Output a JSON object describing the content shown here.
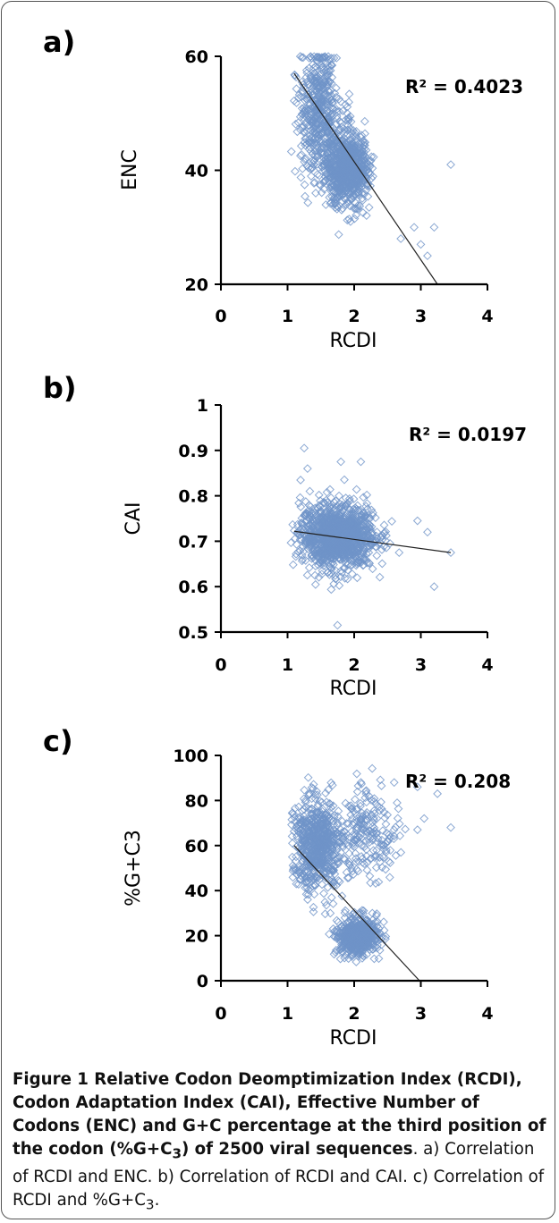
{
  "colors": {
    "marker": "#6f93c8",
    "trendline": "#222222",
    "axis": "#000000",
    "border": "#555555"
  },
  "chart_data": [
    {
      "type": "scatter",
      "panel_label": "a)",
      "xlabel": "RCDI",
      "ylabel": "ENC",
      "xlim": [
        0,
        4
      ],
      "ylim": [
        20,
        60
      ],
      "x_ticks": [
        "0",
        "1",
        "2",
        "3",
        "4"
      ],
      "y_ticks": [
        "20",
        "40",
        "60"
      ],
      "annotation": "R² = 0.4023",
      "marker": "diamond-open",
      "legend": "none",
      "grid": false,
      "clusters": [
        {
          "center": [
            1.45,
            51
          ],
          "spread": [
            0.14,
            5
          ],
          "approx_points": 380
        },
        {
          "center": [
            1.9,
            40
          ],
          "spread": [
            0.16,
            3
          ],
          "approx_points": 700
        },
        {
          "center": [
            1.7,
            44
          ],
          "spread": [
            0.2,
            4
          ],
          "approx_points": 200
        }
      ],
      "outliers": [
        [
          3.45,
          41
        ],
        [
          3.2,
          30
        ],
        [
          2.9,
          30
        ],
        [
          3.1,
          25
        ],
        [
          3.0,
          27
        ],
        [
          2.7,
          28
        ]
      ],
      "trendline": {
        "x": [
          1.1,
          3.25
        ],
        "y": [
          57,
          20
        ]
      }
    },
    {
      "type": "scatter",
      "panel_label": "b)",
      "xlabel": "RCDI",
      "ylabel": "CAI",
      "xlim": [
        0,
        4
      ],
      "ylim": [
        0.5,
        1
      ],
      "x_ticks": [
        "0",
        "1",
        "2",
        "3",
        "4"
      ],
      "y_ticks": [
        "0.5",
        "0.6",
        "0.7",
        "0.8",
        "0.9",
        "1"
      ],
      "annotation": "R² = 0.0197",
      "marker": "diamond-open",
      "legend": "none",
      "grid": false,
      "clusters": [
        {
          "center": [
            1.75,
            0.71
          ],
          "spread": [
            0.28,
            0.035
          ],
          "approx_points": 1200
        }
      ],
      "outliers": [
        [
          1.25,
          0.905
        ],
        [
          1.3,
          0.86
        ],
        [
          2.1,
          0.875
        ],
        [
          1.8,
          0.875
        ],
        [
          1.75,
          0.515
        ],
        [
          3.45,
          0.675
        ],
        [
          3.2,
          0.6
        ],
        [
          2.95,
          0.745
        ],
        [
          3.1,
          0.72
        ]
      ],
      "trendline": {
        "x": [
          1.1,
          3.45
        ],
        "y": [
          0.722,
          0.675
        ]
      }
    },
    {
      "type": "scatter",
      "panel_label": "c)",
      "xlabel": "RCDI",
      "ylabel": "%G+C3",
      "xlim": [
        0,
        4
      ],
      "ylim": [
        0,
        100
      ],
      "x_ticks": [
        "0",
        "1",
        "2",
        "3",
        "4"
      ],
      "y_ticks": [
        "0",
        "20",
        "40",
        "60",
        "80",
        "100"
      ],
      "annotation": "R² = 0.208",
      "marker": "diamond-open",
      "legend": "none",
      "grid": false,
      "clusters": [
        {
          "center": [
            1.45,
            60
          ],
          "spread": [
            0.18,
            10
          ],
          "approx_points": 650
        },
        {
          "center": [
            2.05,
            20
          ],
          "spread": [
            0.15,
            4
          ],
          "approx_points": 550
        },
        {
          "center": [
            2.2,
            65
          ],
          "spread": [
            0.25,
            10
          ],
          "approx_points": 200
        }
      ],
      "outliers": [
        [
          2.95,
          86
        ],
        [
          3.25,
          83
        ],
        [
          3.45,
          68
        ],
        [
          3.05,
          72
        ],
        [
          2.6,
          88
        ],
        [
          2.95,
          67
        ]
      ],
      "trendline": {
        "x": [
          1.1,
          2.98
        ],
        "y": [
          60,
          0
        ]
      }
    }
  ],
  "caption": {
    "bold_part": "Figure 1 Relative Codon Deomptimization Index (RCDI), Codon Adaptation Index (CAI), Effective Number of Codons (ENC) and G+C percentage at the third position of the codon (%G+C",
    "bold_sub": "3",
    "bold_tail": ") of 2500 viral sequences",
    "rest_1": ". a) Correlation of RCDI and ENC. b) Correlation of RCDI and CAI. c) Correlation of RCDI and %G+C",
    "rest_sub": "3",
    "rest_tail": "."
  }
}
